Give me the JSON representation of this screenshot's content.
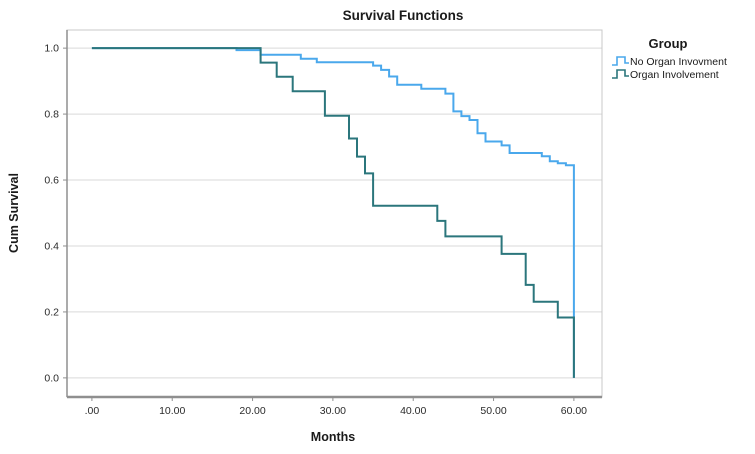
{
  "chart_data": {
    "type": "line",
    "subtype": "kaplan-meier-step",
    "title": "Survival Functions",
    "xlabel": "Months",
    "ylabel": "Cum Survival",
    "x_ticks": [
      {
        "value": 0,
        "label": ".00"
      },
      {
        "value": 10,
        "label": "10.00"
      },
      {
        "value": 20,
        "label": "20.00"
      },
      {
        "value": 30,
        "label": "30.00"
      },
      {
        "value": 40,
        "label": "40.00"
      },
      {
        "value": 50,
        "label": "50.00"
      },
      {
        "value": 60,
        "label": "60.00"
      }
    ],
    "y_ticks": [
      {
        "value": 0.0,
        "label": "0.0"
      },
      {
        "value": 0.2,
        "label": "0.2"
      },
      {
        "value": 0.4,
        "label": "0.4"
      },
      {
        "value": 0.6,
        "label": "0.6"
      },
      {
        "value": 0.8,
        "label": "0.8"
      },
      {
        "value": 1.0,
        "label": "1.0"
      }
    ],
    "xlim": [
      -3.1,
      63.5
    ],
    "ylim": [
      -0.058,
      1.055
    ],
    "grid": "horizontal-only",
    "legend": {
      "title": "Group",
      "position": "top-right-outside"
    },
    "colors": {
      "gridline": "#d9d9d9",
      "frame": "#c8c8c8",
      "axis": "#8f8f8f"
    },
    "series": [
      {
        "name": "No Organ Invovment",
        "color": "#4aa8ec",
        "points": [
          [
            0,
            1.0
          ],
          [
            18,
            0.994
          ],
          [
            21,
            0.98
          ],
          [
            26,
            0.968
          ],
          [
            28,
            0.957
          ],
          [
            35,
            0.947
          ],
          [
            36,
            0.934
          ],
          [
            37,
            0.914
          ],
          [
            38,
            0.889
          ],
          [
            41,
            0.877
          ],
          [
            44,
            0.862
          ],
          [
            45,
            0.808
          ],
          [
            46,
            0.794
          ],
          [
            47,
            0.782
          ],
          [
            48,
            0.742
          ],
          [
            49,
            0.717
          ],
          [
            51,
            0.705
          ],
          [
            52,
            0.682
          ],
          [
            56,
            0.672
          ],
          [
            57,
            0.657
          ],
          [
            58,
            0.651
          ],
          [
            59,
            0.645
          ],
          [
            60,
            0.0
          ]
        ]
      },
      {
        "name": "Organ Involvement",
        "color": "#2b767c",
        "points": [
          [
            0,
            1.0
          ],
          [
            21,
            0.956
          ],
          [
            23,
            0.913
          ],
          [
            25,
            0.869
          ],
          [
            29,
            0.795
          ],
          [
            32,
            0.726
          ],
          [
            33,
            0.671
          ],
          [
            34,
            0.62
          ],
          [
            35,
            0.522
          ],
          [
            43,
            0.476
          ],
          [
            44,
            0.429
          ],
          [
            51,
            0.376
          ],
          [
            54,
            0.282
          ],
          [
            55,
            0.231
          ],
          [
            58,
            0.183
          ],
          [
            60,
            0.0
          ]
        ]
      }
    ]
  }
}
